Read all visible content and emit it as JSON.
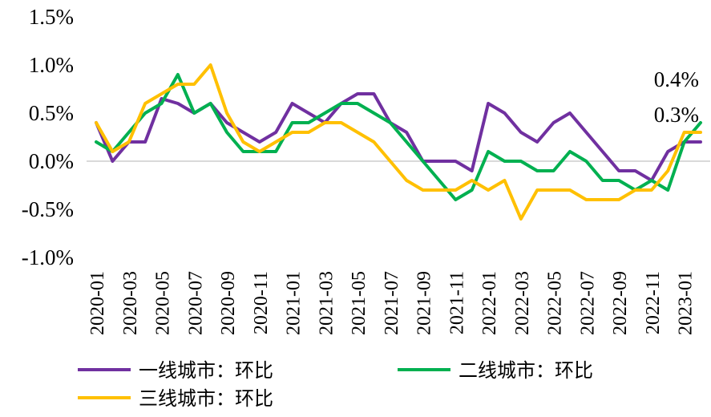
{
  "chart_data": {
    "type": "line",
    "title": "",
    "xlabel": "",
    "ylabel": "",
    "ylim": [
      -1.0,
      1.5
    ],
    "y_ticks": [
      "1.5%",
      "1.0%",
      "0.5%",
      "0.0%",
      "-0.5%",
      "-1.0%"
    ],
    "x_tick_labels": [
      "2020-01",
      "2020-03",
      "2020-05",
      "2020-07",
      "2020-09",
      "2020-11",
      "2021-01",
      "2021-03",
      "2021-05",
      "2021-07",
      "2021-09",
      "2021-11",
      "2022-01",
      "2022-03",
      "2022-05",
      "2022-07",
      "2022-09",
      "2022-11",
      "2023-01"
    ],
    "x": [
      "2020-01",
      "2020-02",
      "2020-03",
      "2020-04",
      "2020-05",
      "2020-06",
      "2020-07",
      "2020-08",
      "2020-09",
      "2020-10",
      "2020-11",
      "2020-12",
      "2021-01",
      "2021-02",
      "2021-03",
      "2021-04",
      "2021-05",
      "2021-06",
      "2021-07",
      "2021-08",
      "2021-09",
      "2021-10",
      "2021-11",
      "2021-12",
      "2022-01",
      "2022-02",
      "2022-03",
      "2022-04",
      "2022-05",
      "2022-06",
      "2022-07",
      "2022-08",
      "2022-09",
      "2022-10",
      "2022-11",
      "2022-12",
      "2023-01",
      "2023-02"
    ],
    "zero_line": true,
    "grid": false,
    "legend_position": "bottom",
    "series": [
      {
        "name": "一线城市：环比",
        "color": "#7030A0",
        "values": [
          0.4,
          0.0,
          0.2,
          0.2,
          0.65,
          0.6,
          0.5,
          0.6,
          0.4,
          0.3,
          0.2,
          0.3,
          0.6,
          0.5,
          0.4,
          0.6,
          0.7,
          0.7,
          0.4,
          0.3,
          0.0,
          0.0,
          0.0,
          -0.1,
          0.6,
          0.5,
          0.3,
          0.2,
          0.4,
          0.5,
          0.3,
          0.1,
          -0.1,
          -0.1,
          -0.2,
          0.1,
          0.2,
          0.2
        ]
      },
      {
        "name": "二线城市：环比",
        "color": "#00B050",
        "values": [
          0.2,
          0.1,
          0.3,
          0.5,
          0.6,
          0.9,
          0.5,
          0.6,
          0.3,
          0.1,
          0.1,
          0.1,
          0.4,
          0.4,
          0.5,
          0.6,
          0.6,
          0.5,
          0.4,
          0.2,
          0.0,
          -0.2,
          -0.4,
          -0.3,
          0.1,
          0.0,
          0.0,
          -0.1,
          -0.1,
          0.1,
          0.0,
          -0.2,
          -0.2,
          -0.3,
          -0.2,
          -0.3,
          0.2,
          0.4
        ]
      },
      {
        "name": "三线城市：环比",
        "color": "#FFC000",
        "values": [
          0.4,
          0.1,
          0.2,
          0.6,
          0.7,
          0.8,
          0.8,
          1.0,
          0.5,
          0.2,
          0.1,
          0.2,
          0.3,
          0.3,
          0.4,
          0.4,
          0.3,
          0.2,
          0.0,
          -0.2,
          -0.3,
          -0.3,
          -0.3,
          -0.2,
          -0.3,
          -0.2,
          -0.6,
          -0.3,
          -0.3,
          -0.3,
          -0.4,
          -0.4,
          -0.4,
          -0.3,
          -0.3,
          -0.1,
          0.3,
          0.3
        ]
      }
    ],
    "annotations": [
      "0.4%",
      "0.3%"
    ]
  }
}
